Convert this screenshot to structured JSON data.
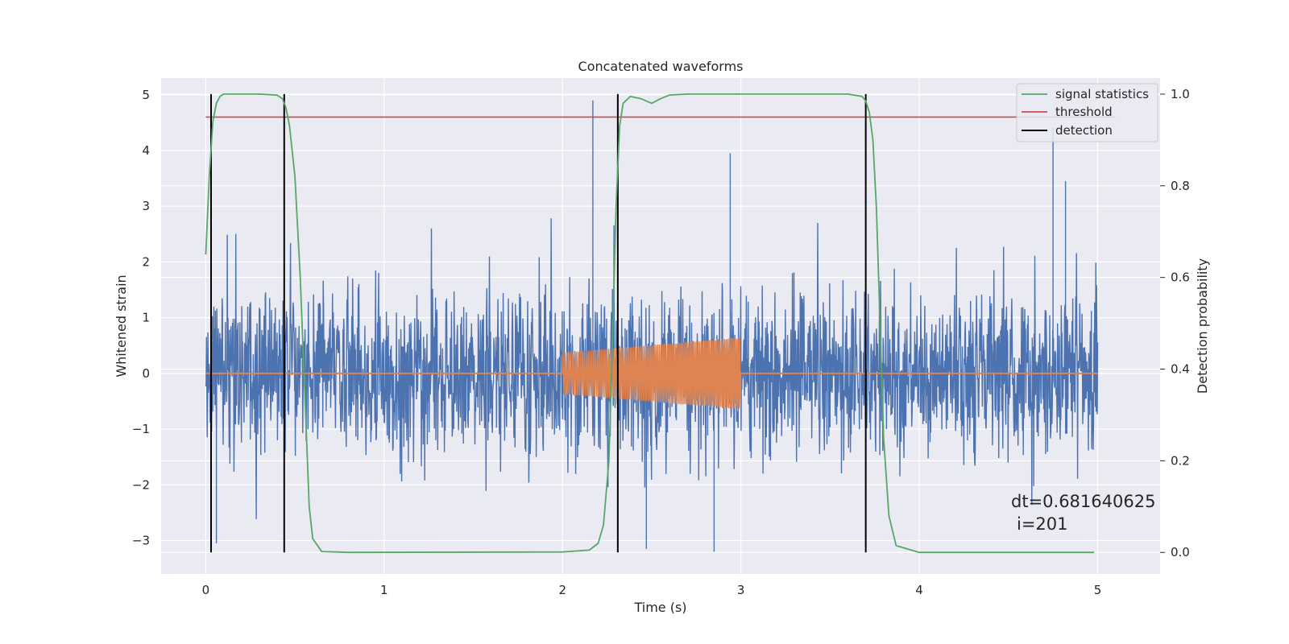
{
  "chart_data": {
    "type": "line",
    "title": "Concatenated waveforms",
    "xlabel": "Time (s)",
    "ylabel": "Whitened strain",
    "ylabel_right": "Detection probability",
    "xlim": [
      -0.25,
      5.35
    ],
    "ylim": [
      -3.6,
      5.3
    ],
    "ylim_right": [
      -0.047,
      1.035
    ],
    "x_ticks": [
      0,
      1,
      2,
      3,
      4,
      5
    ],
    "y_ticks": [
      -3,
      -2,
      -1,
      0,
      1,
      2,
      3,
      4,
      5
    ],
    "y_ticks_right": [
      0.0,
      0.2,
      0.4,
      0.6,
      0.8,
      1.0
    ],
    "x_tick_labels": [
      "0",
      "1",
      "2",
      "3",
      "4",
      "5"
    ],
    "y_tick_labels": [
      "−3",
      "−2",
      "−1",
      "0",
      "1",
      "2",
      "3",
      "4",
      "5"
    ],
    "y_tick_labels_right": [
      "0.0",
      "0.2",
      "0.4",
      "0.6",
      "0.8",
      "1.0"
    ],
    "grid": true,
    "legend_position": "top-right",
    "series": [
      {
        "name": "signal statistics",
        "axis": "right",
        "color": "#55a868",
        "x": [
          0.0,
          0.02,
          0.04,
          0.06,
          0.08,
          0.1,
          0.15,
          0.3,
          0.4,
          0.43,
          0.45,
          0.47,
          0.5,
          0.53,
          0.56,
          0.58,
          0.6,
          0.65,
          0.8,
          2.0,
          2.15,
          2.2,
          2.23,
          2.26,
          2.28,
          2.3,
          2.32,
          2.34,
          2.38,
          2.44,
          2.5,
          2.55,
          2.6,
          2.7,
          3.6,
          3.68,
          3.7,
          3.72,
          3.74,
          3.76,
          3.78,
          3.8,
          3.83,
          3.87,
          4.0,
          4.98
        ],
        "y": [
          0.65,
          0.82,
          0.94,
          0.98,
          0.995,
          1.0,
          1.0,
          1.0,
          0.998,
          0.99,
          0.97,
          0.93,
          0.82,
          0.6,
          0.3,
          0.1,
          0.03,
          0.002,
          0.0,
          0.001,
          0.005,
          0.02,
          0.06,
          0.2,
          0.45,
          0.75,
          0.93,
          0.98,
          0.995,
          0.99,
          0.98,
          0.99,
          0.998,
          1.0,
          1.0,
          0.995,
          0.985,
          0.96,
          0.9,
          0.75,
          0.5,
          0.25,
          0.08,
          0.015,
          0.0,
          0.0
        ]
      },
      {
        "name": "threshold",
        "axis": "right",
        "color": "#c44e52",
        "x": [
          0.0,
          5.1
        ],
        "y": [
          0.95,
          0.95
        ]
      },
      {
        "name": "detection",
        "axis": "right",
        "color": "#000000",
        "x": [
          0.03,
          0.44,
          2.31,
          3.7
        ],
        "y_range": [
          0.0,
          1.0
        ]
      },
      {
        "axis": "left",
        "color": "#4c72b0",
        "kind": "noise",
        "x_range": [
          0.0,
          5.0
        ],
        "y_extent": [
          -3.2,
          4.95
        ],
        "typical_amplitude": 1.6
      },
      {
        "axis": "left",
        "color": "#dd8452",
        "kind": "chirp",
        "x_range": [
          2.0,
          3.0
        ],
        "amplitude_start": 0.37,
        "amplitude_end": 0.65
      }
    ],
    "annotations": [
      {
        "text": "dt=0.681640625"
      },
      {
        "text": "i=201"
      }
    ]
  },
  "colors": {
    "axes_background": "#eaeaf2",
    "grid": "#ffffff",
    "noise": "#4c72b0",
    "chirp": "#dd8452",
    "signal": "#55a868",
    "threshold": "#c44e52",
    "detection": "#000000"
  }
}
